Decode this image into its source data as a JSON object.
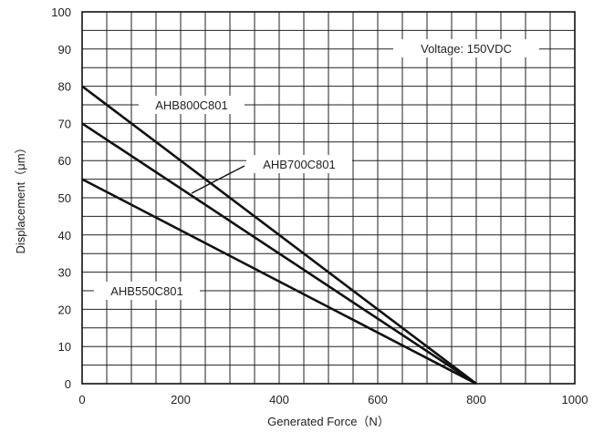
{
  "chart_data": {
    "type": "line",
    "xlabel": "Generated Force（N）",
    "ylabel": "Displacement（μm）",
    "xlim": [
      0,
      1000
    ],
    "ylim": [
      0,
      100
    ],
    "x_ticks": [
      0,
      200,
      400,
      600,
      800,
      1000
    ],
    "x_tick_labels": [
      "0",
      "200",
      "400",
      "600",
      "800",
      "1000"
    ],
    "y_ticks": [
      0,
      10,
      20,
      30,
      40,
      50,
      60,
      70,
      80,
      90,
      100
    ],
    "y_tick_labels": [
      "0",
      "10",
      "20",
      "30",
      "40",
      "50",
      "60",
      "70",
      "80",
      "90",
      "100"
    ],
    "x_grid_step": 50,
    "y_grid_step": 5,
    "grid": true,
    "annotation": "Voltage: 150VDC",
    "series": [
      {
        "name": "AHB800C801",
        "x": [
          0,
          800
        ],
        "y": [
          80,
          0
        ]
      },
      {
        "name": "AHB700C801",
        "x": [
          0,
          800
        ],
        "y": [
          70,
          0
        ]
      },
      {
        "name": "AHB550C801",
        "x": [
          0,
          800
        ],
        "y": [
          55,
          0
        ]
      }
    ],
    "line_color": "#111111",
    "grid_color": "#222222"
  }
}
